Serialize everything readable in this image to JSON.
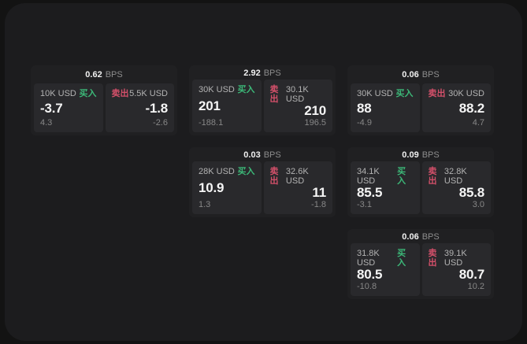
{
  "theme": {
    "background": "#131313",
    "panel_bg": "#1c1c1e",
    "card_bg": "#202022",
    "pane_bg": "#29292c",
    "buy_green": "#3cb878",
    "sell_red": "#d4506a"
  },
  "labels": {
    "bps_unit": "BPS",
    "buy": "买入",
    "sell": "卖出"
  },
  "cards": [
    {
      "bps": "0.62",
      "buy": {
        "amount": "10K USD",
        "value": "-3.7",
        "delta": "4.3"
      },
      "sell": {
        "amount": "5.5K USD",
        "value": "-1.8",
        "delta": "-2.6"
      }
    },
    {
      "bps": "2.92",
      "buy": {
        "amount": "30K USD",
        "value": "201",
        "delta": "-188.1"
      },
      "sell": {
        "amount": "30.1K USD",
        "value": "210",
        "delta": "196.5"
      }
    },
    {
      "bps": "0.06",
      "buy": {
        "amount": "30K USD",
        "value": "88",
        "delta": "-4.9"
      },
      "sell": {
        "amount": "30K USD",
        "value": "88.2",
        "delta": "4.7"
      }
    },
    {
      "bps": "0.03",
      "buy": {
        "amount": "28K USD",
        "value": "10.9",
        "delta": "1.3"
      },
      "sell": {
        "amount": "32.6K USD",
        "value": "11",
        "delta": "-1.8"
      }
    },
    {
      "bps": "0.09",
      "buy": {
        "amount": "34.1K USD",
        "value": "85.5",
        "delta": "-3.1"
      },
      "sell": {
        "amount": "32.8K USD",
        "value": "85.8",
        "delta": "3.0"
      }
    },
    {
      "bps": "0.06",
      "buy": {
        "amount": "31.8K USD",
        "value": "80.5",
        "delta": "-10.8"
      },
      "sell": {
        "amount": "39.1K USD",
        "value": "80.7",
        "delta": "10.2"
      }
    }
  ]
}
